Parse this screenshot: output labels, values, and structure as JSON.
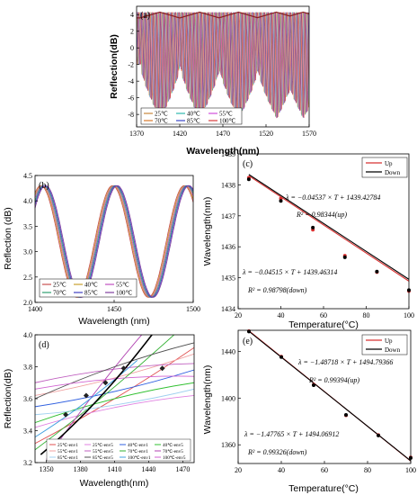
{
  "chart_data": [
    {
      "panel": "(a)",
      "type": "line",
      "xlabel": "Wavelength(nm)",
      "ylabel": "Reflection(dB)",
      "xlim": [
        1370,
        1570
      ],
      "ylim": [
        -9.5,
        5
      ],
      "xticks": [
        "1370",
        "1420",
        "1470",
        "1520",
        "1570"
      ],
      "yticks": [
        "-8",
        "-6",
        "-4",
        "-2",
        "0",
        "2",
        "4"
      ],
      "series": [
        {
          "name": "25℃",
          "color": "#c8873c",
          "shift": 0
        },
        {
          "name": "40℃",
          "color": "#2fb6ad",
          "shift": 0.6
        },
        {
          "name": "55℃",
          "color": "#d04edc",
          "shift": 1.2
        },
        {
          "name": "70℃",
          "color": "#d8792a",
          "shift": 1.8
        },
        {
          "name": "85℃",
          "color": "#3a45c8",
          "shift": 2.4
        },
        {
          "name": "100℃",
          "color": "#d83c3c",
          "shift": 3.0
        }
      ],
      "envelope_peaks_nm": [
        1397,
        1443,
        1488,
        1532,
        1563
      ],
      "fringe_period_nm": 4.3,
      "upper_level_db": 4.3
    },
    {
      "panel": "(b)",
      "type": "line",
      "xlabel": "Wavelength (nm)",
      "ylabel": "Reflection (dB)",
      "xlim": [
        1400,
        1500
      ],
      "ylim": [
        2.0,
        4.5
      ],
      "xticks": [
        "1400",
        "1450",
        "1500"
      ],
      "yticks": [
        "2.0",
        "2.5",
        "3.0",
        "3.5",
        "4.0",
        "4.5"
      ],
      "period_nm": 45.3,
      "peak_nm": 1450.2,
      "amplitude_db": 1.1,
      "mean_db": 3.2,
      "series": [
        {
          "name": "25℃",
          "color": "#c85050",
          "shift": -1.2
        },
        {
          "name": "40℃",
          "color": "#c8a030",
          "shift": -0.6
        },
        {
          "name": "55℃",
          "color": "#c050c0",
          "shift": 0
        },
        {
          "name": "70℃",
          "color": "#30a070",
          "shift": 0.6
        },
        {
          "name": "85℃",
          "color": "#4040c0",
          "shift": 1.2
        },
        {
          "name": "100℃",
          "color": "#8040a0",
          "shift": 1.8
        }
      ]
    },
    {
      "panel": "(c)",
      "type": "scatter",
      "xlabel": "Temperature(°C)",
      "ylabel": "Wavelength(nm)",
      "xlim": [
        20,
        100
      ],
      "ylim": [
        1434,
        1439
      ],
      "xticks": [
        "20",
        "40",
        "60",
        "80",
        "100"
      ],
      "yticks": [
        "1434",
        "1435",
        "1436",
        "1437",
        "1438",
        "1439"
      ],
      "x": [
        25,
        40,
        55,
        70,
        85,
        100
      ],
      "series": [
        {
          "name": "Up",
          "color": "#d83030",
          "values": [
            1438.23,
            1437.56,
            1436.55,
            1435.71,
            1435.18,
            1434.57
          ]
        },
        {
          "name": "Down",
          "color": "#000000",
          "values": [
            1438.18,
            1437.48,
            1436.62,
            1435.66,
            1435.2,
            1434.6
          ]
        }
      ],
      "fits": [
        {
          "slope": -0.04537,
          "intercept": 1439.42784
        },
        {
          "slope": -0.04515,
          "intercept": 1439.46314
        }
      ],
      "eq_up": "λ = −0.04537 × T + 1439.42784",
      "r2_up": "R² = 0.98344(up)",
      "eq_down": "λ = −0.04515 × T + 1439.46314",
      "r2_down": "R² = 0.98798(down)"
    },
    {
      "panel": "(d)",
      "type": "line",
      "xlabel": "Wavelength(nm)",
      "ylabel": "Reflection(dB)",
      "xlim": [
        1340,
        1480
      ],
      "ylim": [
        3.2,
        4.0
      ],
      "xticks": [
        "1350",
        "1380",
        "1410",
        "1440",
        "1470"
      ],
      "yticks": [
        "3.2",
        "3.4",
        "3.6",
        "3.8",
        "4.0"
      ],
      "legend": [
        "25℃-env1",
        "25℃-env5",
        "40℃-env1",
        "40℃-env5",
        "55℃-env1",
        "55℃-env5",
        "70℃-env1",
        "70℃-env5",
        "85℃-env1",
        "85℃-env5",
        "100℃-env1",
        "100℃-env5"
      ],
      "colors": [
        "#e05050",
        "#e080e0",
        "#3060e0",
        "#30c030",
        "#f0a0a0",
        "#c060c0",
        "#30b030",
        "#b040b0",
        "#a0d0f0",
        "#505050",
        "#40a0e0",
        "#d060d0"
      ]
    },
    {
      "panel": "(e)",
      "type": "scatter",
      "xlabel": "Temperature(°C)",
      "ylabel": "Wavelength(nm)",
      "xlim": [
        20,
        100
      ],
      "ylim": [
        1344,
        1458
      ],
      "xticks": [
        "20",
        "40",
        "60",
        "80",
        "100"
      ],
      "yticks": [
        "1360",
        "1400",
        "1440"
      ],
      "x": [
        25,
        40,
        55,
        70,
        85,
        100
      ],
      "series": [
        {
          "name": "Up",
          "color": "#d83030",
          "values": [
            1457.3,
            1435.5,
            1411.4,
            1385.2,
            1368.4,
            1349.2
          ]
        },
        {
          "name": "Down",
          "color": "#000000",
          "values": [
            1456.9,
            1435.1,
            1411.0,
            1385.6,
            1368.0,
            1348.7
          ]
        }
      ],
      "fits": [
        {
          "slope": -1.48718,
          "intercept": 1494.79366
        },
        {
          "slope": -1.47765,
          "intercept": 1494.06912
        }
      ],
      "eq_up": "λ = −1.48718 × T + 1494.79366",
      "r2_up": "R² = 0.99394(up)",
      "eq_down": "λ = −1.47765 × T + 1494.06912",
      "r2_down": "R² = 0.99326(down)"
    }
  ]
}
